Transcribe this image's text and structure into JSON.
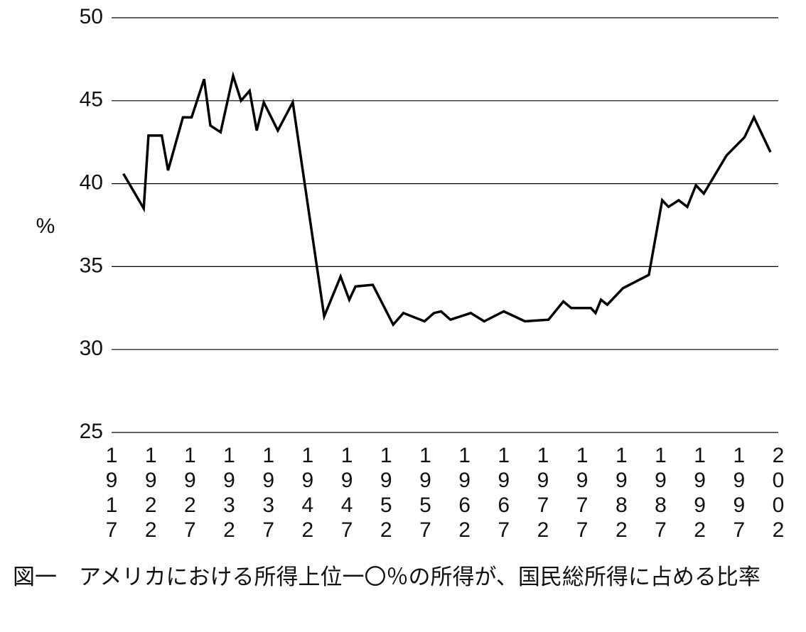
{
  "chart_data": {
    "type": "line",
    "caption": "図一　アメリカにおける所得上位一〇％の所得が、国民総所得に占める比率",
    "ylabel": "%",
    "x": [
      1918.5,
      1921.1,
      1921.7,
      1923.4,
      1924.2,
      1926.1,
      1927.2,
      1928.8,
      1929.6,
      1930.9,
      1932.5,
      1933.5,
      1934.6,
      1935.5,
      1936.4,
      1938.2,
      1940.1,
      1944.1,
      1946.2,
      1947.3,
      1948.1,
      1950.3,
      1952.9,
      1954.2,
      1956.9,
      1958.1,
      1959.0,
      1960.2,
      1962.8,
      1964.5,
      1967.0,
      1969.7,
      1972.7,
      1974.6,
      1975.6,
      1978.1,
      1978.7,
      1979.4,
      1980.2,
      1982.2,
      1985.5,
      1987.2,
      1988.0,
      1989.3,
      1990.4,
      1991.5,
      1992.5,
      1995.4,
      1997.7,
      1998.9,
      2001.0
    ],
    "values": [
      40.6,
      38.5,
      42.9,
      42.9,
      40.8,
      44.0,
      44.0,
      46.3,
      43.5,
      43.1,
      46.5,
      45.0,
      45.6,
      43.2,
      44.9,
      43.2,
      44.9,
      32.0,
      34.4,
      33.0,
      33.8,
      33.9,
      31.5,
      32.2,
      31.7,
      32.2,
      32.3,
      31.8,
      32.2,
      31.7,
      32.3,
      31.7,
      31.8,
      32.9,
      32.5,
      32.5,
      32.2,
      33.0,
      32.7,
      33.7,
      34.5,
      39.0,
      38.6,
      39.0,
      38.6,
      39.9,
      39.4,
      41.7,
      42.8,
      44.0,
      41.9
    ],
    "color": "#000000",
    "xlim": [
      1917,
      2002
    ],
    "xticks": [
      1917,
      1922,
      1927,
      1932,
      1937,
      1942,
      1947,
      1952,
      1957,
      1962,
      1967,
      1972,
      1977,
      1982,
      1987,
      1992,
      1997,
      2002
    ],
    "ylim": [
      25,
      50
    ],
    "yticks": [
      25,
      30,
      35,
      40,
      45,
      50
    ],
    "grid": true
  }
}
